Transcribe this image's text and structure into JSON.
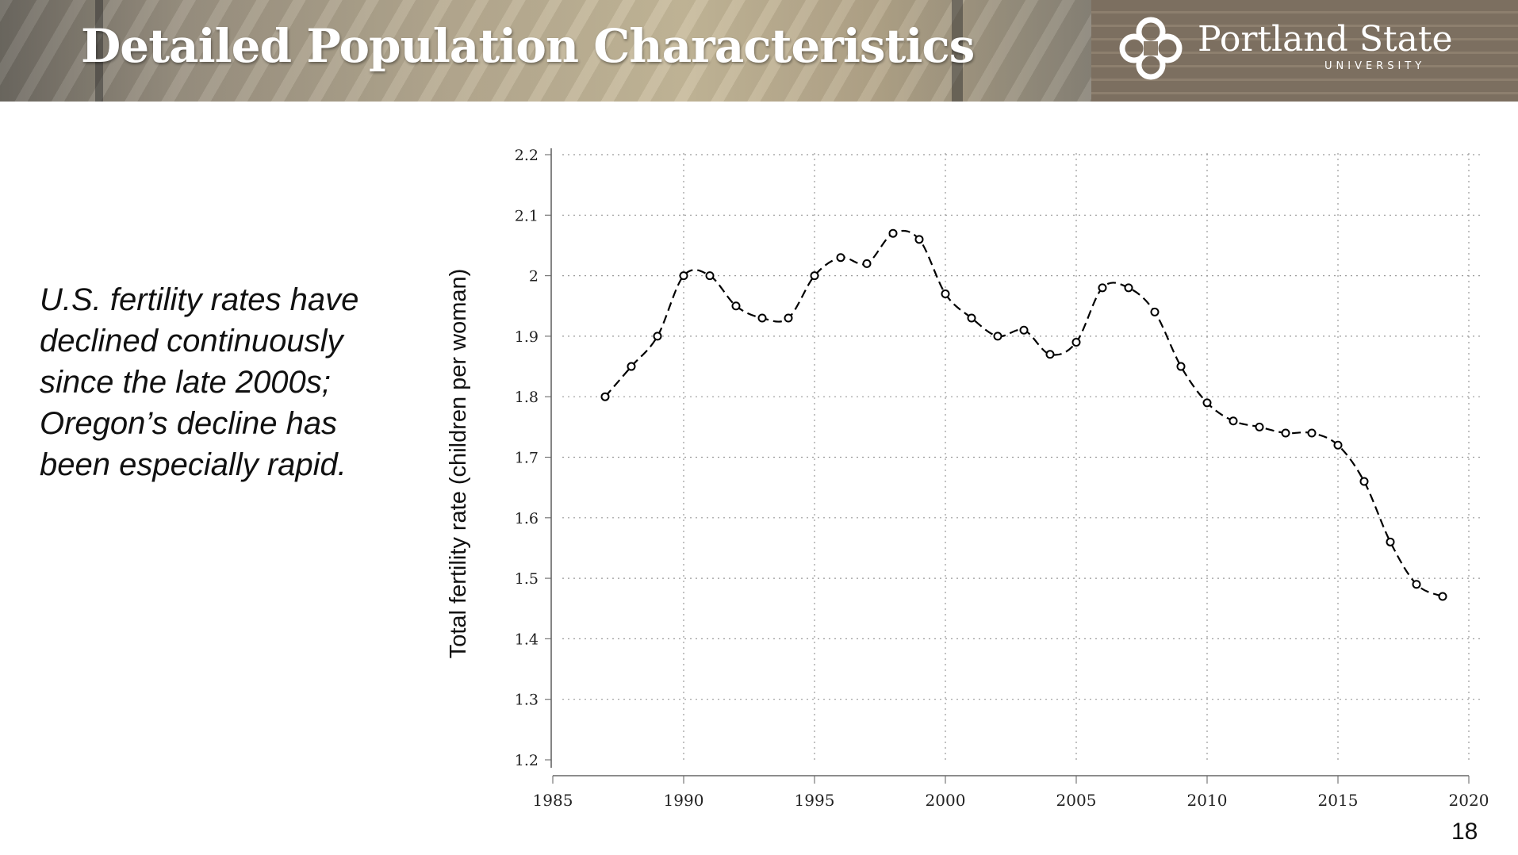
{
  "header": {
    "title": "Detailed Population Characteristics",
    "logo_name": "Portland State",
    "logo_sub": "UNIVERSITY"
  },
  "caption": {
    "lines": [
      "U.S. fertility rates have",
      "declined continuously",
      "since the late 2000s;",
      "Oregon’s decline has",
      "been especially rapid."
    ]
  },
  "page_number": "18",
  "chart_data": {
    "type": "line",
    "title": "",
    "xlabel": "",
    "ylabel": "Total fertility rate (children per woman)",
    "xlim": [
      1985,
      2020
    ],
    "ylim": [
      1.2,
      2.2
    ],
    "xticks": [
      "1985",
      "1990",
      "1995",
      "2000",
      "2005",
      "2010",
      "2015",
      "2020"
    ],
    "yticks": [
      "1.2",
      "1.3",
      "1.4",
      "1.5",
      "1.6",
      "1.7",
      "1.8",
      "1.9",
      "2",
      "2.1",
      "2.2"
    ],
    "grid": true,
    "series": [
      {
        "name": "Total fertility rate",
        "x": [
          1987,
          1988,
          1989,
          1990,
          1991,
          1992,
          1993,
          1994,
          1995,
          1996,
          1997,
          1998,
          1999,
          2000,
          2001,
          2002,
          2003,
          2004,
          2005,
          2006,
          2007,
          2008,
          2009,
          2010,
          2011,
          2012,
          2013,
          2014,
          2015,
          2016,
          2017,
          2018,
          2019
        ],
        "values": [
          1.8,
          1.85,
          1.9,
          2.0,
          2.0,
          1.95,
          1.93,
          1.93,
          2.0,
          2.03,
          2.02,
          2.07,
          2.06,
          1.97,
          1.93,
          1.9,
          1.91,
          1.87,
          1.89,
          1.98,
          1.98,
          1.94,
          1.85,
          1.79,
          1.76,
          1.75,
          1.74,
          1.74,
          1.72,
          1.66,
          1.56,
          1.49,
          1.47
        ]
      }
    ]
  }
}
